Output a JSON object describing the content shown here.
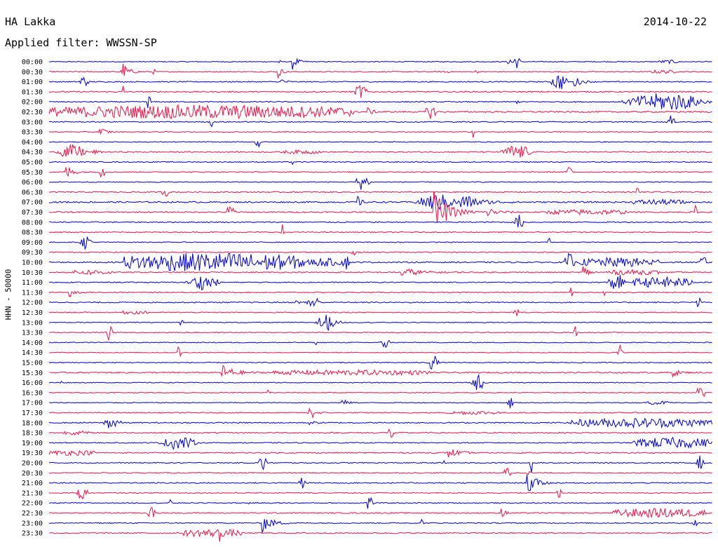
{
  "header": {
    "station": "HA Lakka",
    "date": "2014-10-22",
    "filter_label": "Applied filter: WWSSN-SP"
  },
  "chart_data": {
    "type": "line",
    "title": "HA Lakka",
    "date": "2014-10-22",
    "filter": "WWSSN-SP",
    "ylabel": "HHN - 50000",
    "row_labels": [
      "00:00",
      "00:30",
      "01:00",
      "01:30",
      "02:00",
      "02:30",
      "03:00",
      "03:30",
      "04:00",
      "04:30",
      "05:00",
      "05:30",
      "06:00",
      "06:30",
      "07:00",
      "07:30",
      "08:00",
      "08:30",
      "09:00",
      "09:30",
      "10:00",
      "10:30",
      "11:00",
      "11:30",
      "12:00",
      "12:30",
      "13:00",
      "13:30",
      "14:00",
      "14:30",
      "15:00",
      "15:30",
      "16:00",
      "16:30",
      "17:00",
      "17:30",
      "18:00",
      "18:30",
      "19:00",
      "19:30",
      "20:00",
      "20:30",
      "21:00",
      "21:30",
      "22:00",
      "22:30",
      "23:00",
      "23:30"
    ],
    "colors": [
      "#0000cc",
      "#e8154a"
    ],
    "base_noise": [
      0.6,
      0.7,
      0.7,
      0.9,
      0.8,
      1.0,
      0.7,
      0.6,
      0.6,
      0.8,
      0.7,
      0.7,
      0.6,
      0.8,
      1.0,
      0.9,
      0.8,
      0.7,
      0.6,
      0.7,
      0.9,
      0.8,
      0.7,
      0.7,
      0.8,
      0.7,
      0.6,
      0.6,
      0.6,
      0.6,
      0.7,
      0.9,
      0.6,
      0.6,
      0.6,
      0.7,
      0.8,
      0.9,
      0.7,
      0.8,
      0.7,
      0.7,
      0.8,
      0.7,
      0.7,
      0.8,
      0.7,
      0.8
    ],
    "events": [
      {
        "row": 0,
        "start": 0.345,
        "dur": 0.004,
        "amp": 3,
        "shape": "pulse"
      },
      {
        "row": 0,
        "start": 0.366,
        "dur": 0.03,
        "amp": 13,
        "shape": "spike"
      },
      {
        "row": 0,
        "start": 0.69,
        "dur": 0.022,
        "amp": 11,
        "shape": "burst"
      },
      {
        "row": 0,
        "start": 0.92,
        "dur": 0.03,
        "amp": 2,
        "shape": "noise"
      },
      {
        "row": 1,
        "start": 0.1,
        "dur": 0.02,
        "amp": 2,
        "shape": "burst"
      },
      {
        "row": 1,
        "start": 0.11,
        "dur": 0.04,
        "amp": 13,
        "shape": "spike"
      },
      {
        "row": 1,
        "start": 0.155,
        "dur": 0.006,
        "amp": 3,
        "shape": "pulse"
      },
      {
        "row": 1,
        "start": 0.345,
        "dur": 0.02,
        "amp": 12,
        "shape": "spike"
      },
      {
        "row": 1,
        "start": 0.59,
        "dur": 0.014,
        "amp": 3,
        "shape": "burst"
      },
      {
        "row": 1,
        "start": 0.64,
        "dur": 0.008,
        "amp": 2,
        "shape": "pulse"
      },
      {
        "row": 1,
        "start": 0.905,
        "dur": 0.04,
        "amp": 2,
        "shape": "noise"
      },
      {
        "row": 2,
        "start": 0.045,
        "dur": 0.015,
        "amp": 11,
        "shape": "burst"
      },
      {
        "row": 2,
        "start": 0.35,
        "dur": 0.02,
        "amp": 10,
        "shape": "spike"
      },
      {
        "row": 2,
        "start": 0.755,
        "dur": 0.028,
        "amp": 12,
        "shape": "burst"
      },
      {
        "row": 2,
        "start": 0.79,
        "dur": 0.04,
        "amp": 10,
        "shape": "spike"
      },
      {
        "row": 3,
        "start": 0.11,
        "dur": 0.004,
        "amp": 12,
        "shape": "pulse"
      },
      {
        "row": 3,
        "start": 0.46,
        "dur": 0.02,
        "amp": 12,
        "shape": "burst"
      },
      {
        "row": 4,
        "start": 0.145,
        "dur": 0.01,
        "amp": 9,
        "shape": "burst"
      },
      {
        "row": 4,
        "start": 0.7,
        "dur": 0.01,
        "amp": 2,
        "shape": "pulse"
      },
      {
        "row": 4,
        "start": 0.86,
        "dur": 0.14,
        "amp": 12,
        "shape": "burst"
      },
      {
        "row": 5,
        "start": 0.0,
        "dur": 0.46,
        "amp": 9,
        "shape": "noise"
      },
      {
        "row": 5,
        "start": 0.48,
        "dur": 0.03,
        "amp": 6,
        "shape": "spike"
      },
      {
        "row": 5,
        "start": 0.565,
        "dur": 0.02,
        "amp": 9,
        "shape": "burst"
      },
      {
        "row": 6,
        "start": 0.24,
        "dur": 0.01,
        "amp": 7,
        "shape": "burst"
      },
      {
        "row": 6,
        "start": 0.93,
        "dur": 0.014,
        "amp": 9,
        "shape": "burst"
      },
      {
        "row": 7,
        "start": 0.075,
        "dur": 0.03,
        "amp": 12,
        "shape": "spike"
      },
      {
        "row": 7,
        "start": 0.637,
        "dur": 0.004,
        "amp": 8,
        "shape": "pulse"
      },
      {
        "row": 8,
        "start": 0.31,
        "dur": 0.01,
        "amp": 10,
        "shape": "burst"
      },
      {
        "row": 9,
        "start": 0.01,
        "dur": 0.05,
        "amp": 10,
        "shape": "burst"
      },
      {
        "row": 9,
        "start": 0.065,
        "dur": 0.025,
        "amp": 6,
        "shape": "spike"
      },
      {
        "row": 9,
        "start": 0.35,
        "dur": 0.06,
        "amp": 2,
        "shape": "noise"
      },
      {
        "row": 9,
        "start": 0.68,
        "dur": 0.05,
        "amp": 10,
        "shape": "burst"
      },
      {
        "row": 10,
        "start": 0.365,
        "dur": 0.004,
        "amp": 9,
        "shape": "pulse"
      },
      {
        "row": 11,
        "start": 0.025,
        "dur": 0.04,
        "amp": 13,
        "shape": "spike"
      },
      {
        "row": 11,
        "start": 0.075,
        "dur": 0.01,
        "amp": 10,
        "shape": "burst"
      },
      {
        "row": 11,
        "start": 0.78,
        "dur": 0.01,
        "amp": 10,
        "shape": "burst"
      },
      {
        "row": 12,
        "start": 0.46,
        "dur": 0.025,
        "amp": 11,
        "shape": "burst"
      },
      {
        "row": 13,
        "start": 0.135,
        "dur": 0.006,
        "amp": 3,
        "shape": "pulse"
      },
      {
        "row": 13,
        "start": 0.17,
        "dur": 0.01,
        "amp": 10,
        "shape": "burst"
      },
      {
        "row": 13,
        "start": 0.885,
        "dur": 0.004,
        "amp": 9,
        "shape": "pulse"
      },
      {
        "row": 14,
        "start": 0.465,
        "dur": 0.02,
        "amp": 10,
        "shape": "spike"
      },
      {
        "row": 14,
        "start": 0.55,
        "dur": 0.07,
        "amp": 11,
        "shape": "burst"
      },
      {
        "row": 14,
        "start": 0.62,
        "dur": 0.1,
        "amp": 14,
        "shape": "spike"
      },
      {
        "row": 14,
        "start": 0.88,
        "dur": 0.08,
        "amp": 3,
        "shape": "noise"
      },
      {
        "row": 15,
        "start": 0.265,
        "dur": 0.018,
        "amp": 10,
        "shape": "burst"
      },
      {
        "row": 15,
        "start": 0.58,
        "dur": 0.09,
        "amp": 30,
        "shape": "spike"
      },
      {
        "row": 15,
        "start": 0.66,
        "dur": 0.07,
        "amp": 6,
        "shape": "spike"
      },
      {
        "row": 15,
        "start": 0.75,
        "dur": 0.12,
        "amp": 3,
        "shape": "noise"
      },
      {
        "row": 15,
        "start": 0.97,
        "dur": 0.008,
        "amp": 9,
        "shape": "burst"
      },
      {
        "row": 16,
        "start": 0.7,
        "dur": 0.017,
        "amp": 10,
        "shape": "burst"
      },
      {
        "row": 17,
        "start": 0.348,
        "dur": 0.006,
        "amp": 12,
        "shape": "pulse"
      },
      {
        "row": 18,
        "start": 0.045,
        "dur": 0.024,
        "amp": 10,
        "shape": "burst"
      },
      {
        "row": 18,
        "start": 0.75,
        "dur": 0.006,
        "amp": 10,
        "shape": "pulse"
      },
      {
        "row": 19,
        "start": 0.455,
        "dur": 0.03,
        "amp": 7,
        "shape": "spike"
      },
      {
        "row": 20,
        "start": 0.11,
        "dur": 0.275,
        "amp": 13,
        "shape": "noise"
      },
      {
        "row": 20,
        "start": 0.39,
        "dur": 0.05,
        "amp": 5,
        "shape": "noise"
      },
      {
        "row": 20,
        "start": 0.44,
        "dur": 0.015,
        "amp": 10,
        "shape": "burst"
      },
      {
        "row": 20,
        "start": 0.775,
        "dur": 0.02,
        "amp": 12,
        "shape": "burst"
      },
      {
        "row": 20,
        "start": 0.8,
        "dur": 0.12,
        "amp": 6,
        "shape": "noise"
      },
      {
        "row": 20,
        "start": 0.98,
        "dur": 0.015,
        "amp": 10,
        "shape": "burst"
      },
      {
        "row": 21,
        "start": 0.035,
        "dur": 0.06,
        "amp": 3,
        "shape": "noise"
      },
      {
        "row": 21,
        "start": 0.53,
        "dur": 0.1,
        "amp": 8,
        "shape": "spike"
      },
      {
        "row": 21,
        "start": 0.805,
        "dur": 0.03,
        "amp": 12,
        "shape": "spike"
      },
      {
        "row": 21,
        "start": 0.84,
        "dur": 0.08,
        "amp": 3,
        "shape": "noise"
      },
      {
        "row": 22,
        "start": 0.205,
        "dur": 0.055,
        "amp": 10,
        "shape": "burst"
      },
      {
        "row": 22,
        "start": 0.84,
        "dur": 0.03,
        "amp": 12,
        "shape": "burst"
      },
      {
        "row": 22,
        "start": 0.88,
        "dur": 0.09,
        "amp": 7,
        "shape": "noise"
      },
      {
        "row": 23,
        "start": 0.03,
        "dur": 0.03,
        "amp": 11,
        "shape": "spike"
      },
      {
        "row": 23,
        "start": 0.785,
        "dur": 0.004,
        "amp": 8,
        "shape": "pulse"
      },
      {
        "row": 23,
        "start": 0.835,
        "dur": 0.004,
        "amp": 8,
        "shape": "pulse"
      },
      {
        "row": 24,
        "start": 0.37,
        "dur": 0.02,
        "amp": 4,
        "shape": "spike"
      },
      {
        "row": 24,
        "start": 0.385,
        "dur": 0.025,
        "amp": 9,
        "shape": "burst"
      },
      {
        "row": 24,
        "start": 0.975,
        "dur": 0.008,
        "amp": 9,
        "shape": "burst"
      },
      {
        "row": 25,
        "start": 0.1,
        "dur": 0.05,
        "amp": 2,
        "shape": "noise"
      },
      {
        "row": 25,
        "start": 0.7,
        "dur": 0.008,
        "amp": 9,
        "shape": "burst"
      },
      {
        "row": 26,
        "start": 0.195,
        "dur": 0.008,
        "amp": 9,
        "shape": "pulse"
      },
      {
        "row": 26,
        "start": 0.4,
        "dur": 0.035,
        "amp": 11,
        "shape": "burst"
      },
      {
        "row": 26,
        "start": 0.435,
        "dur": 0.02,
        "amp": 4,
        "shape": "spike"
      },
      {
        "row": 27,
        "start": 0.085,
        "dur": 0.012,
        "amp": 11,
        "shape": "burst"
      },
      {
        "row": 27,
        "start": 0.088,
        "dur": 0.02,
        "amp": 6,
        "shape": "spike"
      },
      {
        "row": 27,
        "start": 0.79,
        "dur": 0.006,
        "amp": 9,
        "shape": "pulse"
      },
      {
        "row": 28,
        "start": 0.4,
        "dur": 0.004,
        "amp": 3,
        "shape": "pulse"
      },
      {
        "row": 28,
        "start": 0.5,
        "dur": 0.014,
        "amp": 10,
        "shape": "burst"
      },
      {
        "row": 29,
        "start": 0.192,
        "dur": 0.008,
        "amp": 11,
        "shape": "burst"
      },
      {
        "row": 29,
        "start": 0.855,
        "dur": 0.01,
        "amp": 11,
        "shape": "burst"
      },
      {
        "row": 30,
        "start": 0.57,
        "dur": 0.018,
        "amp": 11,
        "shape": "burst"
      },
      {
        "row": 31,
        "start": 0.26,
        "dur": 0.075,
        "amp": 12,
        "shape": "spike"
      },
      {
        "row": 31,
        "start": 0.335,
        "dur": 0.24,
        "amp": 3,
        "shape": "noise"
      },
      {
        "row": 31,
        "start": 0.94,
        "dur": 0.04,
        "amp": 6,
        "shape": "spike"
      },
      {
        "row": 32,
        "start": 0.016,
        "dur": 0.005,
        "amp": 2,
        "shape": "pulse"
      },
      {
        "row": 32,
        "start": 0.635,
        "dur": 0.025,
        "amp": 11,
        "shape": "burst"
      },
      {
        "row": 33,
        "start": 0.328,
        "dur": 0.007,
        "amp": 9,
        "shape": "burst"
      },
      {
        "row": 33,
        "start": 0.875,
        "dur": 0.004,
        "amp": 4,
        "shape": "pulse"
      },
      {
        "row": 33,
        "start": 0.975,
        "dur": 0.015,
        "amp": 12,
        "shape": "burst"
      },
      {
        "row": 34,
        "start": 0.44,
        "dur": 0.03,
        "amp": 8,
        "shape": "spike"
      },
      {
        "row": 34,
        "start": 0.69,
        "dur": 0.01,
        "amp": 9,
        "shape": "burst"
      },
      {
        "row": 34,
        "start": 0.9,
        "dur": 0.04,
        "amp": 2,
        "shape": "noise"
      },
      {
        "row": 35,
        "start": 0.39,
        "dur": 0.01,
        "amp": 11,
        "shape": "burst"
      },
      {
        "row": 35,
        "start": 0.4,
        "dur": 0.03,
        "amp": 3,
        "shape": "spike"
      },
      {
        "row": 35,
        "start": 0.6,
        "dur": 0.08,
        "amp": 2,
        "shape": "noise"
      },
      {
        "row": 36,
        "start": 0.08,
        "dur": 0.03,
        "amp": 9,
        "shape": "burst"
      },
      {
        "row": 36,
        "start": 0.39,
        "dur": 0.04,
        "amp": 3,
        "shape": "spike"
      },
      {
        "row": 36,
        "start": 0.785,
        "dur": 0.215,
        "amp": 6,
        "shape": "noise"
      },
      {
        "row": 37,
        "start": 0.02,
        "dur": 0.04,
        "amp": 2,
        "shape": "noise"
      },
      {
        "row": 37,
        "start": 0.51,
        "dur": 0.012,
        "amp": 10,
        "shape": "burst"
      },
      {
        "row": 38,
        "start": 0.165,
        "dur": 0.06,
        "amp": 9,
        "shape": "burst"
      },
      {
        "row": 38,
        "start": 0.88,
        "dur": 0.12,
        "amp": 7,
        "shape": "noise"
      },
      {
        "row": 39,
        "start": 0.0,
        "dur": 0.07,
        "amp": 3,
        "shape": "noise"
      },
      {
        "row": 39,
        "start": 0.6,
        "dur": 0.06,
        "amp": 9,
        "shape": "spike"
      },
      {
        "row": 40,
        "start": 0.315,
        "dur": 0.015,
        "amp": 11,
        "shape": "burst"
      },
      {
        "row": 40,
        "start": 0.59,
        "dur": 0.01,
        "amp": 3,
        "shape": "pulse"
      },
      {
        "row": 40,
        "start": 0.725,
        "dur": 0.004,
        "amp": 15,
        "shape": "pulse"
      },
      {
        "row": 40,
        "start": 0.975,
        "dur": 0.015,
        "amp": 10,
        "shape": "burst"
      },
      {
        "row": 41,
        "start": 0.685,
        "dur": 0.012,
        "amp": 10,
        "shape": "burst"
      },
      {
        "row": 41,
        "start": 0.722,
        "dur": 0.004,
        "amp": 12,
        "shape": "pulse"
      },
      {
        "row": 42,
        "start": 0.375,
        "dur": 0.012,
        "amp": 10,
        "shape": "burst"
      },
      {
        "row": 42,
        "start": 0.72,
        "dur": 0.05,
        "amp": 20,
        "shape": "spike"
      },
      {
        "row": 43,
        "start": 0.04,
        "dur": 0.02,
        "amp": 9,
        "shape": "burst"
      },
      {
        "row": 43,
        "start": 0.765,
        "dur": 0.008,
        "amp": 8,
        "shape": "pulse"
      },
      {
        "row": 44,
        "start": 0.18,
        "dur": 0.006,
        "amp": 4,
        "shape": "pulse"
      },
      {
        "row": 44,
        "start": 0.3,
        "dur": 0.004,
        "amp": 3,
        "shape": "pulse"
      },
      {
        "row": 44,
        "start": 0.35,
        "dur": 0.004,
        "amp": 3,
        "shape": "pulse"
      },
      {
        "row": 44,
        "start": 0.475,
        "dur": 0.015,
        "amp": 10,
        "shape": "burst"
      },
      {
        "row": 45,
        "start": 0.148,
        "dur": 0.012,
        "amp": 10,
        "shape": "burst"
      },
      {
        "row": 45,
        "start": 0.68,
        "dur": 0.025,
        "amp": 10,
        "shape": "spike"
      },
      {
        "row": 45,
        "start": 0.85,
        "dur": 0.14,
        "amp": 6,
        "shape": "noise"
      },
      {
        "row": 46,
        "start": 0.32,
        "dur": 0.06,
        "amp": 15,
        "shape": "spike"
      },
      {
        "row": 46,
        "start": 0.56,
        "dur": 0.005,
        "amp": 9,
        "shape": "burst"
      },
      {
        "row": 46,
        "start": 0.97,
        "dur": 0.008,
        "amp": 9,
        "shape": "burst"
      },
      {
        "row": 47,
        "start": 0.2,
        "dur": 0.09,
        "amp": 5,
        "shape": "noise"
      },
      {
        "row": 47,
        "start": 0.255,
        "dur": 0.004,
        "amp": 12,
        "shape": "pulse"
      }
    ]
  }
}
